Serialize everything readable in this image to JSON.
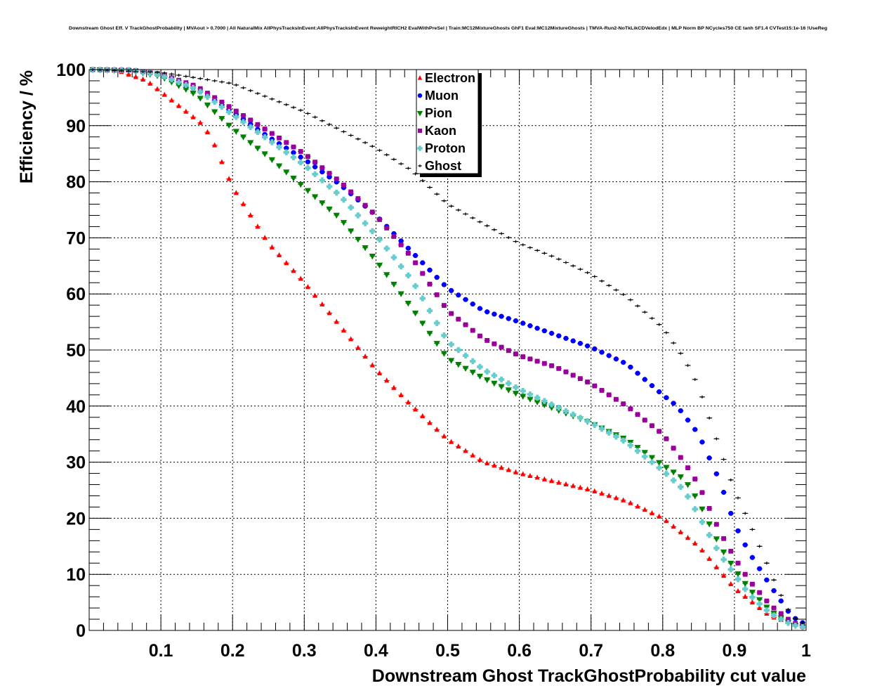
{
  "chart_data": {
    "type": "scatter",
    "title": "Downstream Ghost Eff. V TrackGhostProbability | MVAout > 0.7000 | All NaturalMix AllPhysTracksInEvent:AllPhysTracksInEvent ReweightRICH2 EvalWithPreSel | Train:MC12MixtureGhosts GhF1 Eval:MC12MixtureGhosts | TMVA-Run2-NoTkLikCDVelodEdx | MLP Norm BP NCycles750 CE tanh SF1.4 CVTest15:1e-16 !UseReg",
    "xlabel": "Downstream Ghost TrackGhostProbability cut value",
    "ylabel": "Efficiency / %",
    "xlim": [
      0,
      1
    ],
    "ylim": [
      0,
      100
    ],
    "x_ticks": [
      "0.1",
      "0.2",
      "0.3",
      "0.4",
      "0.5",
      "0.6",
      "0.7",
      "0.8",
      "0.9",
      "1"
    ],
    "y_ticks": [
      "0",
      "10",
      "20",
      "30",
      "40",
      "50",
      "60",
      "70",
      "80",
      "90",
      "100"
    ],
    "grid": true,
    "legend_position": "top-center",
    "x_bins": {
      "start": 0.005,
      "step": 0.01,
      "count": 100
    },
    "series": [
      {
        "name": "Electron",
        "color": "#ff0000",
        "marker": "triangle-up",
        "knots": [
          [
            0,
            100
          ],
          [
            0.04,
            99.8
          ],
          [
            0.08,
            98.0
          ],
          [
            0.1,
            96.0
          ],
          [
            0.13,
            93.0
          ],
          [
            0.155,
            90.5
          ],
          [
            0.17,
            88.0
          ],
          [
            0.19,
            82.0
          ],
          [
            0.2,
            79.0
          ],
          [
            0.25,
            69.0
          ],
          [
            0.3,
            62.0
          ],
          [
            0.4,
            46.5
          ],
          [
            0.45,
            40.0
          ],
          [
            0.5,
            34.0
          ],
          [
            0.55,
            30.0
          ],
          [
            0.6,
            28.0
          ],
          [
            0.7,
            25.0
          ],
          [
            0.75,
            23.0
          ],
          [
            0.8,
            20.0
          ],
          [
            0.85,
            15.0
          ],
          [
            0.9,
            7.5
          ],
          [
            0.95,
            2.5
          ],
          [
            1.0,
            0.5
          ]
        ]
      },
      {
        "name": "Muon",
        "color": "#0000ff",
        "marker": "circle",
        "knots": [
          [
            0,
            100
          ],
          [
            0.06,
            99.9
          ],
          [
            0.1,
            99.0
          ],
          [
            0.15,
            96.5
          ],
          [
            0.2,
            92.5
          ],
          [
            0.25,
            88.0
          ],
          [
            0.3,
            84.0
          ],
          [
            0.35,
            79.5
          ],
          [
            0.4,
            74.0
          ],
          [
            0.45,
            67.5
          ],
          [
            0.5,
            61.0
          ],
          [
            0.55,
            57.0
          ],
          [
            0.6,
            55.0
          ],
          [
            0.7,
            50.5
          ],
          [
            0.75,
            47.5
          ],
          [
            0.8,
            42.0
          ],
          [
            0.82,
            40.0
          ],
          [
            0.85,
            35.0
          ],
          [
            0.88,
            26.5
          ],
          [
            0.9,
            19.0
          ],
          [
            0.92,
            14.0
          ],
          [
            0.95,
            8.0
          ],
          [
            0.98,
            2.5
          ],
          [
            1.0,
            1.0
          ]
        ]
      },
      {
        "name": "Pion",
        "color": "#008000",
        "marker": "triangle-down",
        "knots": [
          [
            0,
            100
          ],
          [
            0.06,
            99.8
          ],
          [
            0.1,
            98.8
          ],
          [
            0.15,
            95.5
          ],
          [
            0.2,
            89.5
          ],
          [
            0.25,
            84.5
          ],
          [
            0.3,
            79.0
          ],
          [
            0.35,
            73.5
          ],
          [
            0.4,
            66.0
          ],
          [
            0.45,
            57.5
          ],
          [
            0.5,
            48.5
          ],
          [
            0.55,
            45.0
          ],
          [
            0.6,
            42.0
          ],
          [
            0.7,
            37.0
          ],
          [
            0.75,
            34.0
          ],
          [
            0.8,
            29.5
          ],
          [
            0.83,
            27.0
          ],
          [
            0.85,
            23.0
          ],
          [
            0.88,
            15.0
          ],
          [
            0.9,
            11.0
          ],
          [
            0.92,
            7.5
          ],
          [
            0.95,
            3.5
          ],
          [
            0.98,
            1.0
          ],
          [
            1.0,
            0.5
          ]
        ]
      },
      {
        "name": "Kaon",
        "color": "#990099",
        "marker": "square",
        "knots": [
          [
            0,
            100
          ],
          [
            0.06,
            99.9
          ],
          [
            0.1,
            99.2
          ],
          [
            0.15,
            97.0
          ],
          [
            0.2,
            93.0
          ],
          [
            0.25,
            89.0
          ],
          [
            0.3,
            85.0
          ],
          [
            0.35,
            80.0
          ],
          [
            0.4,
            74.0
          ],
          [
            0.45,
            66.5
          ],
          [
            0.5,
            57.0
          ],
          [
            0.55,
            52.0
          ],
          [
            0.6,
            49.0
          ],
          [
            0.65,
            47.0
          ],
          [
            0.7,
            44.0
          ],
          [
            0.75,
            40.0
          ],
          [
            0.8,
            35.0
          ],
          [
            0.83,
            30.0
          ],
          [
            0.85,
            26.0
          ],
          [
            0.88,
            17.5
          ],
          [
            0.9,
            13.0
          ],
          [
            0.92,
            9.0
          ],
          [
            0.95,
            4.5
          ],
          [
            0.98,
            1.5
          ],
          [
            1.0,
            0.5
          ]
        ]
      },
      {
        "name": "Proton",
        "color": "#66cccc",
        "marker": "cross",
        "knots": [
          [
            0,
            100
          ],
          [
            0.06,
            99.9
          ],
          [
            0.1,
            99.0
          ],
          [
            0.15,
            96.5
          ],
          [
            0.2,
            92.0
          ],
          [
            0.25,
            87.5
          ],
          [
            0.3,
            83.0
          ],
          [
            0.35,
            77.5
          ],
          [
            0.4,
            70.5
          ],
          [
            0.45,
            62.5
          ],
          [
            0.5,
            51.5
          ],
          [
            0.55,
            46.5
          ],
          [
            0.6,
            43.0
          ],
          [
            0.7,
            37.0
          ],
          [
            0.75,
            33.5
          ],
          [
            0.8,
            28.5
          ],
          [
            0.83,
            25.0
          ],
          [
            0.85,
            20.5
          ],
          [
            0.88,
            13.5
          ],
          [
            0.9,
            10.0
          ],
          [
            0.92,
            6.5
          ],
          [
            0.95,
            3.0
          ],
          [
            0.98,
            1.0
          ],
          [
            1.0,
            0.5
          ]
        ]
      },
      {
        "name": "Ghost",
        "color": "#000000",
        "marker": "plus",
        "knots": [
          [
            0,
            100
          ],
          [
            0.1,
            99.5
          ],
          [
            0.2,
            97.5
          ],
          [
            0.3,
            92.5
          ],
          [
            0.4,
            86.0
          ],
          [
            0.45,
            82.0
          ],
          [
            0.5,
            76.0
          ],
          [
            0.55,
            72.5
          ],
          [
            0.6,
            69.0
          ],
          [
            0.65,
            66.5
          ],
          [
            0.7,
            63.5
          ],
          [
            0.75,
            59.5
          ],
          [
            0.8,
            54.0
          ],
          [
            0.83,
            48.5
          ],
          [
            0.85,
            43.5
          ],
          [
            0.87,
            36.0
          ],
          [
            0.9,
            25.0
          ],
          [
            0.92,
            19.5
          ],
          [
            0.94,
            13.5
          ],
          [
            0.96,
            7.5
          ],
          [
            0.98,
            2.5
          ],
          [
            1.0,
            1.0
          ]
        ]
      }
    ]
  }
}
